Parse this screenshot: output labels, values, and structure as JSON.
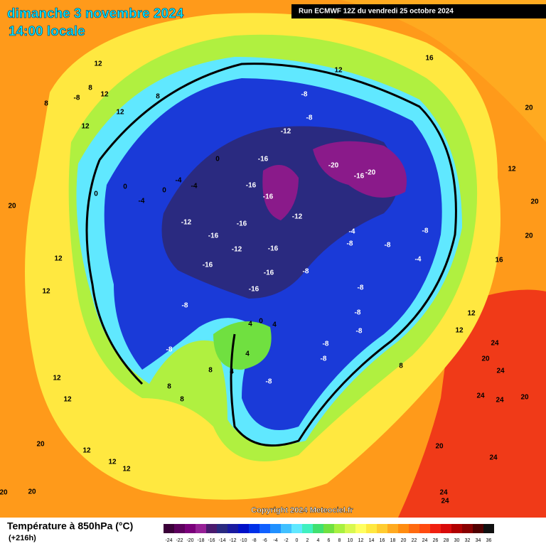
{
  "header": {
    "title": "dimanche 3 novembre 2024",
    "subtitle": "14:00 locale",
    "run": "Run ECMWF 12Z du vendredi 25 octobre 2024"
  },
  "map": {
    "copyright": "Copyright 2024 Meteociel.fr",
    "contour_labels": [
      "12",
      "8",
      "-8",
      "12",
      "8",
      "12",
      "12",
      "8",
      "12",
      "16",
      "20",
      "12",
      "20",
      "20",
      "16",
      "12",
      "12",
      "-8",
      "-8",
      "-12",
      "-20",
      "-16",
      "-20",
      "-16",
      "-16",
      "-16",
      "-12",
      "-4",
      "-8",
      "-8",
      "-8",
      "-4",
      "-12",
      "-16",
      "-16",
      "-12",
      "-16",
      "-16",
      "-16",
      "-8",
      "-16",
      "-8",
      "-8",
      "-8",
      "-8",
      "-8",
      "-8",
      "-8",
      "-8",
      "0",
      "-4",
      "-4",
      "0",
      "0",
      "0",
      "-4",
      "0",
      "4",
      "4",
      "4",
      "4",
      "8",
      "8",
      "8",
      "8",
      "12",
      "12",
      "20",
      "12",
      "12",
      "12",
      "20",
      "20",
      "20",
      "20",
      "24",
      "20",
      "24",
      "24",
      "24",
      "24",
      "24",
      "24",
      "12",
      "12",
      "20"
    ]
  },
  "legend": {
    "title": "Température à 850hPa (°C)",
    "lead": "(+216h)",
    "ticks": [
      -24,
      -22,
      -20,
      -18,
      -16,
      -14,
      -12,
      -10,
      -8,
      -6,
      -4,
      -2,
      0,
      2,
      4,
      6,
      8,
      10,
      12,
      14,
      16,
      18,
      20,
      22,
      24,
      26,
      28,
      30,
      32,
      34,
      36
    ],
    "colors": [
      "#3a0038",
      "#5c005c",
      "#7a007a",
      "#962096",
      "#4a1a6e",
      "#2a2a80",
      "#1a1aa0",
      "#0010c8",
      "#0030e8",
      "#1060ff",
      "#2090ff",
      "#40c0ff",
      "#60e8ff",
      "#40f0c0",
      "#40e070",
      "#70e040",
      "#a8f040",
      "#d8f850",
      "#ffff60",
      "#ffe840",
      "#ffcc30",
      "#ffaa20",
      "#ff8c10",
      "#ff6a10",
      "#ff4a10",
      "#f02010",
      "#d80a0a",
      "#b00000",
      "#880000",
      "#500000",
      "#101010"
    ]
  }
}
